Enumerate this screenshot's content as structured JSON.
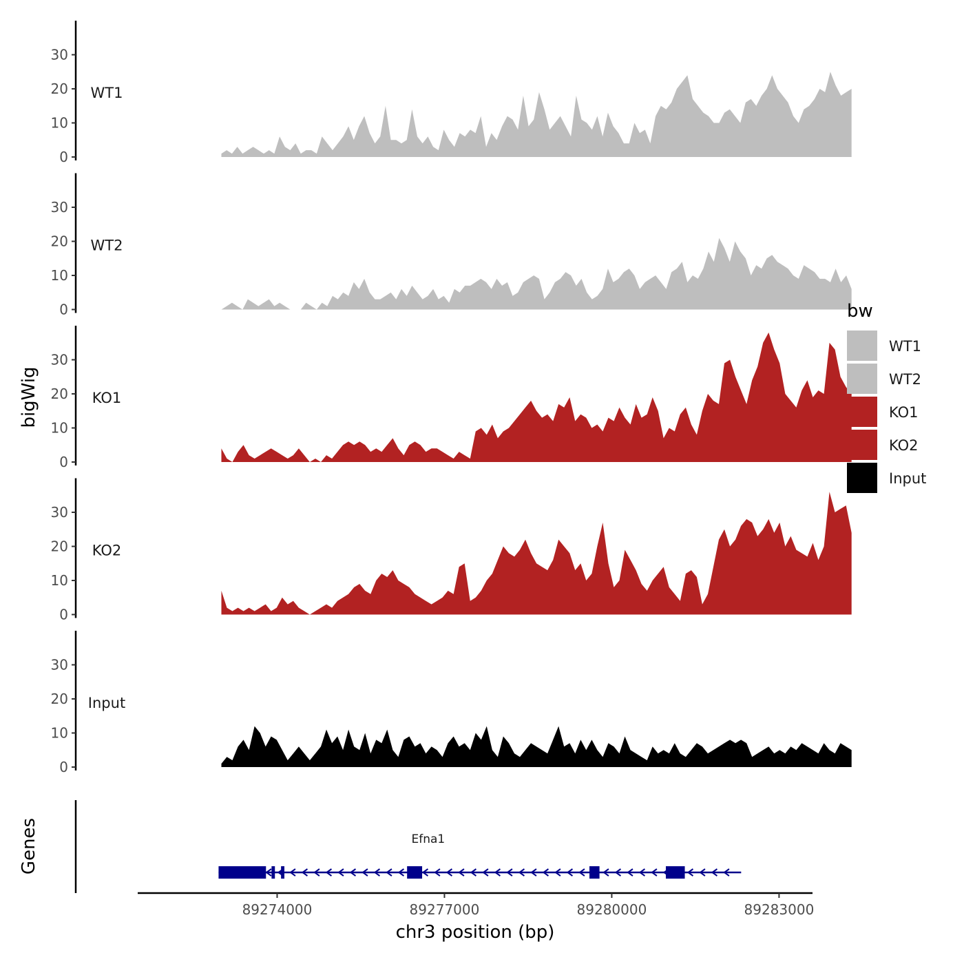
{
  "chart_data": {
    "type": "area",
    "title": "",
    "ylabel": "bigWig",
    "xlabel": "chr3 position (bp)",
    "gene_track_label": "Genes",
    "ylim": [
      0,
      40
    ],
    "yticks": [
      0,
      10,
      20,
      30
    ],
    "xlim": [
      89271500,
      89283600
    ],
    "xticks": [
      89274000,
      89277000,
      89280000,
      89283000
    ],
    "xtick_labels": [
      "89274000",
      "89277000",
      "89280000",
      "89283000"
    ],
    "legend": {
      "title": "bw",
      "placement": "right",
      "entries": [
        {
          "label": "WT1",
          "color": "#bebebe"
        },
        {
          "label": "WT2",
          "color": "#bebebe"
        },
        {
          "label": "KO1",
          "color": "#b22222"
        },
        {
          "label": "KO2",
          "color": "#b22222"
        },
        {
          "label": "Input",
          "color": "#000000"
        }
      ]
    },
    "series": [
      {
        "name": "WT1",
        "color": "#bebebe",
        "x_start": 89273000,
        "x_end": 89284300,
        "values": [
          1,
          2,
          1,
          3,
          1,
          2,
          3,
          2,
          1,
          2,
          1,
          6,
          3,
          2,
          4,
          1,
          2,
          2,
          1,
          6,
          4,
          2,
          4,
          6,
          9,
          5,
          9,
          12,
          7,
          4,
          6,
          15,
          5,
          5,
          4,
          5,
          14,
          6,
          4,
          6,
          3,
          2,
          8,
          5,
          3,
          7,
          6,
          8,
          7,
          12,
          3,
          7,
          5,
          9,
          12,
          11,
          8,
          18,
          9,
          11,
          19,
          14,
          8,
          10,
          12,
          9,
          6,
          18,
          11,
          10,
          8,
          12,
          6,
          13,
          9,
          7,
          4,
          4,
          10,
          7,
          8,
          4,
          12,
          15,
          14,
          16,
          20,
          22,
          24,
          17,
          15,
          13,
          12,
          10,
          10,
          13,
          14,
          12,
          10,
          16,
          17,
          15,
          18,
          20,
          24,
          20,
          18,
          16,
          12,
          10,
          14,
          15,
          17,
          20,
          19,
          25,
          21,
          18,
          19,
          20
        ]
      },
      {
        "name": "WT2",
        "color": "#bebebe",
        "x_start": 89273000,
        "x_end": 89284300,
        "values": [
          0,
          1,
          2,
          1,
          0,
          3,
          2,
          1,
          2,
          3,
          1,
          2,
          1,
          0,
          0,
          0,
          2,
          1,
          0,
          2,
          1,
          4,
          3,
          5,
          4,
          8,
          6,
          9,
          5,
          3,
          3,
          4,
          5,
          3,
          6,
          4,
          7,
          5,
          3,
          4,
          6,
          3,
          4,
          2,
          6,
          5,
          7,
          7,
          8,
          9,
          8,
          6,
          9,
          7,
          8,
          4,
          5,
          8,
          9,
          10,
          9,
          3,
          5,
          8,
          9,
          11,
          10,
          7,
          9,
          5,
          3,
          4,
          6,
          12,
          8,
          9,
          11,
          12,
          10,
          6,
          8,
          9,
          10,
          8,
          6,
          11,
          12,
          14,
          8,
          10,
          9,
          12,
          17,
          14,
          21,
          18,
          14,
          20,
          17,
          15,
          10,
          13,
          12,
          15,
          16,
          14,
          13,
          12,
          10,
          9,
          13,
          12,
          11,
          9,
          9,
          8,
          12,
          8,
          10,
          6
        ]
      },
      {
        "name": "KO1",
        "color": "#b22222",
        "x_start": 89273000,
        "x_end": 89284300,
        "values": [
          4,
          1,
          0,
          3,
          5,
          2,
          1,
          2,
          3,
          4,
          3,
          2,
          1,
          2,
          4,
          2,
          0,
          1,
          0,
          2,
          1,
          3,
          5,
          6,
          5,
          6,
          5,
          3,
          4,
          3,
          5,
          7,
          4,
          2,
          5,
          6,
          5,
          3,
          4,
          4,
          3,
          2,
          1,
          3,
          2,
          1,
          9,
          10,
          8,
          11,
          7,
          9,
          10,
          12,
          14,
          16,
          18,
          15,
          13,
          14,
          12,
          17,
          16,
          19,
          12,
          14,
          13,
          10,
          11,
          9,
          13,
          12,
          16,
          13,
          11,
          17,
          13,
          14,
          19,
          15,
          7,
          10,
          9,
          14,
          16,
          11,
          8,
          15,
          20,
          18,
          17,
          29,
          30,
          25,
          21,
          17,
          24,
          28,
          35,
          38,
          33,
          29,
          20,
          18,
          16,
          21,
          24,
          19,
          21,
          20,
          35,
          33,
          25,
          22,
          20
        ]
      },
      {
        "name": "KO2",
        "color": "#b22222",
        "x_start": 89273000,
        "x_end": 89284300,
        "values": [
          7,
          2,
          1,
          2,
          1,
          2,
          1,
          2,
          3,
          1,
          2,
          5,
          3,
          4,
          2,
          1,
          0,
          1,
          2,
          3,
          2,
          4,
          5,
          6,
          8,
          9,
          7,
          6,
          10,
          12,
          11,
          13,
          10,
          9,
          8,
          6,
          5,
          4,
          3,
          4,
          5,
          7,
          6,
          14,
          15,
          4,
          5,
          7,
          10,
          12,
          16,
          20,
          18,
          17,
          19,
          22,
          18,
          15,
          14,
          13,
          16,
          22,
          20,
          18,
          13,
          15,
          10,
          12,
          20,
          27,
          15,
          8,
          10,
          19,
          16,
          13,
          9,
          7,
          10,
          12,
          14,
          8,
          6,
          4,
          12,
          13,
          11,
          3,
          6,
          14,
          22,
          25,
          20,
          22,
          26,
          28,
          27,
          23,
          25,
          28,
          24,
          27,
          20,
          23,
          19,
          18,
          17,
          21,
          16,
          20,
          36,
          30,
          31,
          32,
          24
        ]
      },
      {
        "name": "Input",
        "color": "#000000",
        "x_start": 89273000,
        "x_end": 89284300,
        "values": [
          1,
          3,
          2,
          6,
          8,
          5,
          12,
          10,
          6,
          9,
          8,
          5,
          2,
          4,
          6,
          4,
          2,
          4,
          6,
          11,
          7,
          9,
          5,
          11,
          6,
          5,
          10,
          4,
          8,
          7,
          11,
          5,
          3,
          8,
          9,
          6,
          7,
          4,
          6,
          5,
          3,
          7,
          9,
          6,
          7,
          5,
          10,
          8,
          12,
          5,
          3,
          9,
          7,
          4,
          3,
          5,
          7,
          6,
          5,
          4,
          8,
          12,
          6,
          7,
          4,
          8,
          5,
          8,
          5,
          3,
          7,
          6,
          4,
          9,
          5,
          4,
          3,
          2,
          6,
          4,
          5,
          4,
          7,
          4,
          3,
          5,
          7,
          6,
          4,
          5,
          6,
          7,
          8,
          7,
          8,
          7,
          3,
          4,
          5,
          6,
          4,
          5,
          4,
          6,
          5,
          7,
          6,
          5,
          4,
          7,
          5,
          4,
          7,
          6,
          5
        ]
      }
    ],
    "gene": {
      "name": "Efna1",
      "strand": "-",
      "start": 89272950,
      "end": 89282320,
      "exons": [
        [
          89272950,
          89273800
        ],
        [
          89273900,
          89273960
        ],
        [
          89274070,
          89274130
        ],
        [
          89276330,
          89276600
        ],
        [
          89279600,
          89279780
        ],
        [
          89280970,
          89281310
        ]
      ],
      "color": "#00008b"
    }
  }
}
